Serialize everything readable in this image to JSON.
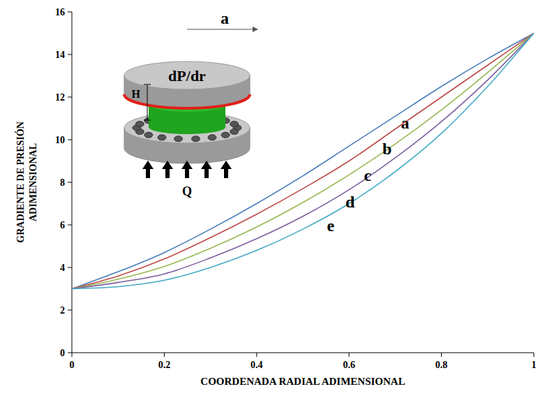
{
  "chart_data": {
    "type": "line",
    "x_label": "COORDENADA RADIAL ADIMENSIONAL",
    "y_label": "GRADIENTE DE PRESIÓN ADIMENSIONAL",
    "annotations": [
      "dP/dr",
      "a",
      "H",
      "Q"
    ],
    "x": [
      0,
      0.1,
      0.2,
      0.3,
      0.4,
      0.5,
      0.6,
      0.7,
      0.8,
      0.9,
      1
    ],
    "series": [
      {
        "name": "a",
        "color": "#4a7ebb",
        "values": [
          3,
          3.8,
          4.7,
          5.8,
          7.0,
          8.3,
          9.7,
          11.1,
          12.5,
          13.8,
          15
        ]
      },
      {
        "name": "b",
        "color": "#be4b48",
        "values": [
          3,
          3.6,
          4.4,
          5.4,
          6.5,
          7.7,
          9.0,
          10.5,
          12.0,
          13.5,
          15
        ]
      },
      {
        "name": "c",
        "color": "#98b954",
        "values": [
          3,
          3.45,
          4.05,
          4.9,
          5.9,
          7.05,
          8.35,
          9.8,
          11.4,
          13.15,
          15
        ]
      },
      {
        "name": "d",
        "color": "#7d60a0",
        "values": [
          3,
          3.3,
          3.7,
          4.45,
          5.35,
          6.4,
          7.65,
          9.15,
          10.85,
          12.8,
          15
        ]
      },
      {
        "name": "e",
        "color": "#46aac5",
        "values": [
          3,
          3.1,
          3.4,
          4.0,
          4.8,
          5.8,
          7.0,
          8.5,
          10.3,
          12.5,
          15
        ]
      }
    ],
    "xlim": [
      0,
      1
    ],
    "ylim": [
      0,
      16
    ],
    "xticks": [
      0,
      0.2,
      0.4,
      0.6,
      0.8,
      1
    ],
    "yticks": [
      0,
      2,
      4,
      6,
      8,
      10,
      12,
      14,
      16
    ],
    "grid": false
  }
}
